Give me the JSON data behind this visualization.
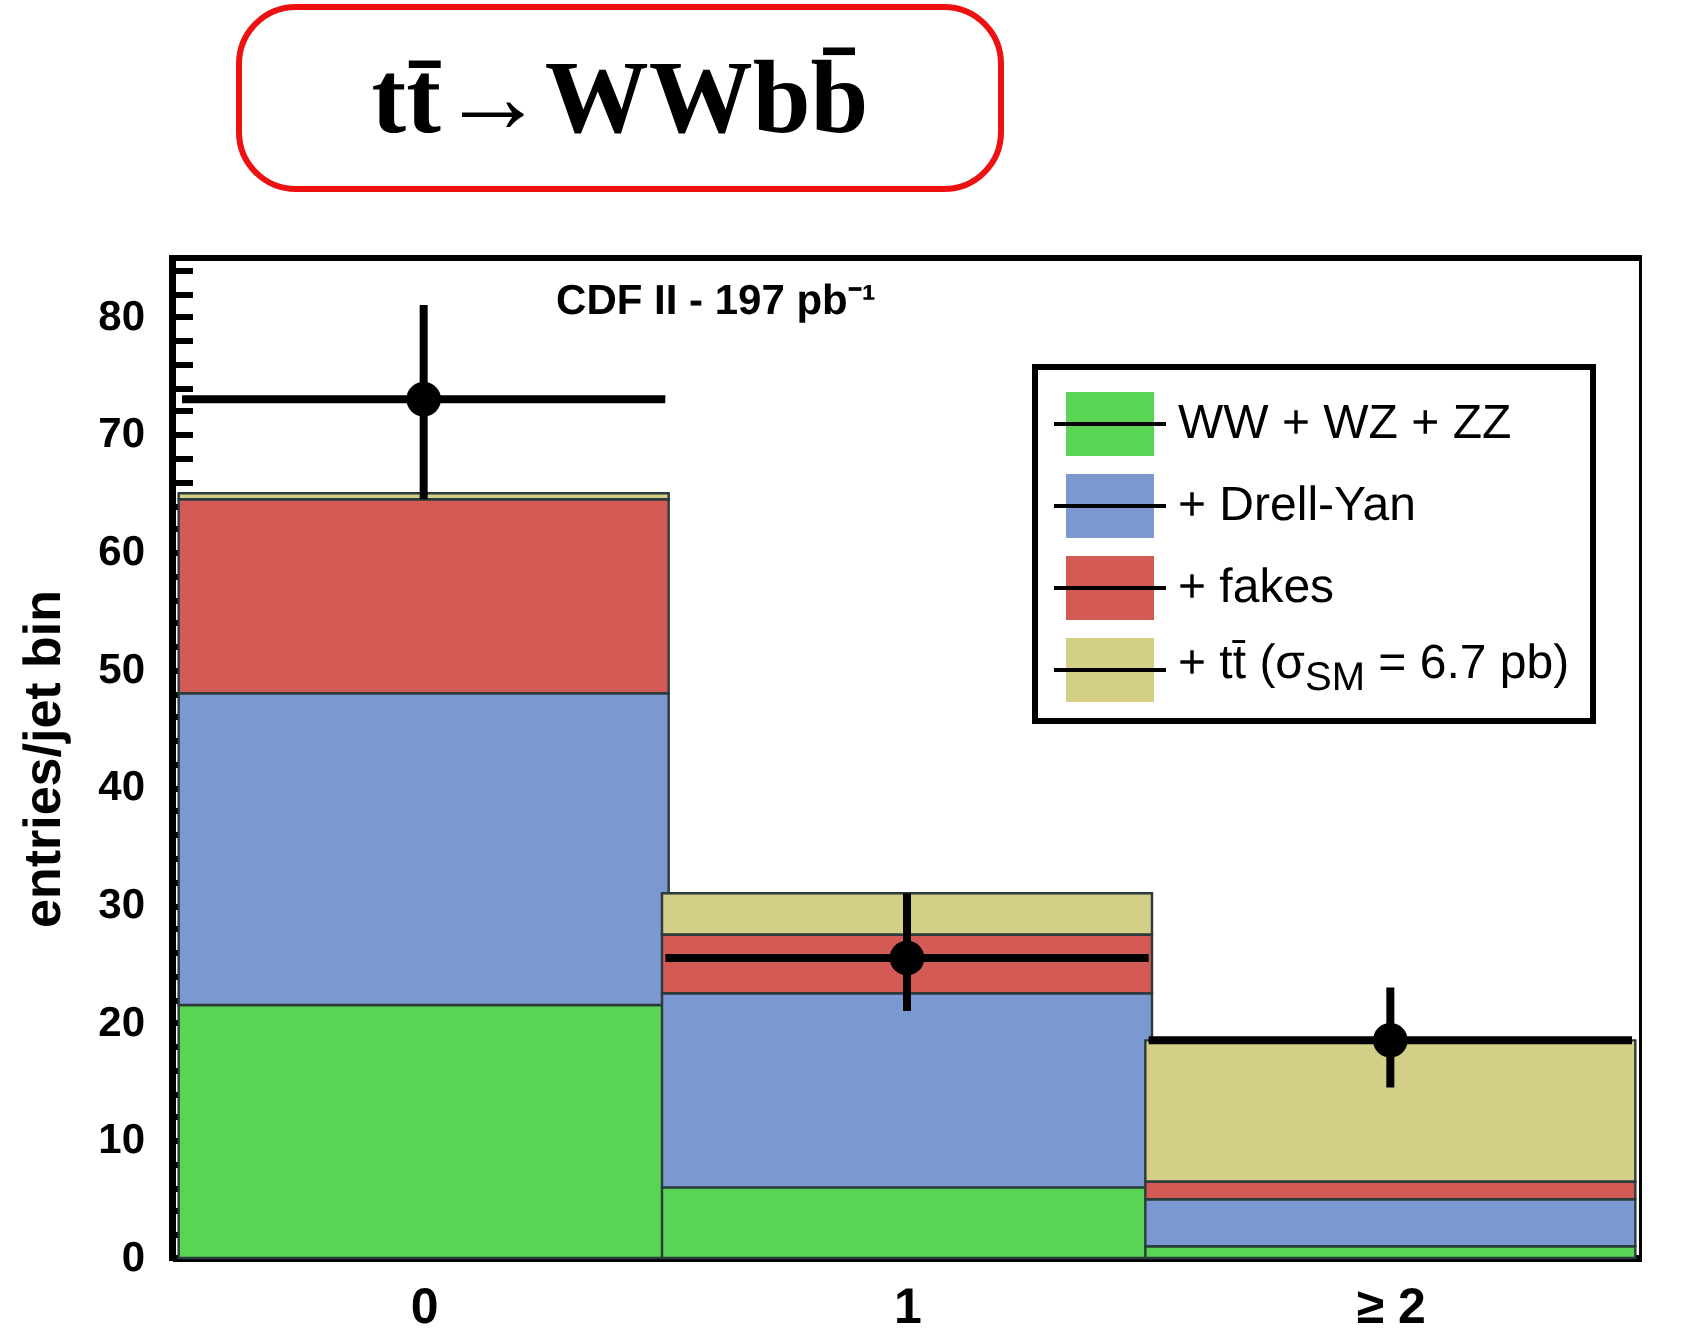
{
  "chart_data": {
    "type": "bar",
    "title": "tt̄→WWbb̄",
    "ylabel": "entries/jet bin",
    "annotations": [
      "CDF II - 197 pb⁻¹"
    ],
    "x": [
      0,
      1,
      2
    ],
    "xlim": [
      -0.5,
      2.5
    ],
    "xticks": [
      0,
      1,
      {
        "value": 2,
        "label": "≥ 2"
      }
    ],
    "stacked": true,
    "series": [
      {
        "name": "WW + WZ + ZZ",
        "color": "#5ad454",
        "values": [
          21.5,
          6,
          1
        ]
      },
      {
        "name": "+ Drell-Yan",
        "color": "#7b98d0",
        "values": [
          26.5,
          16.5,
          4
        ]
      },
      {
        "name": "+ fakes",
        "color": "#d45a55",
        "values": [
          16.5,
          5,
          1.5
        ]
      },
      {
        "name": "+ tt̄ (σ$_{SM}$ = 6.7 pb)",
        "color": "#d4cf87",
        "values": [
          0.5,
          3.5,
          12
        ]
      },
      {
        "type": "scatter",
        "color": "#000000",
        "values": [
          73,
          25.5,
          18.5
        ],
        "errors": [
          [
            64.5,
            81
          ],
          [
            21,
            31
          ],
          [
            14.5,
            23
          ]
        ],
        "xerrors": [
          0.5,
          0.5,
          0.5
        ]
      }
    ],
    "ylim": [
      0,
      85
    ],
    "yticks": [
      0,
      {
        "value": 2,
        "label": null
      },
      {
        "value": 4,
        "label": null
      },
      {
        "value": 6,
        "label": null
      },
      {
        "value": 8,
        "label": null
      },
      10,
      {
        "value": 12,
        "label": null
      },
      {
        "value": 14,
        "label": null
      },
      {
        "value": 16,
        "label": null
      },
      {
        "value": 18,
        "label": null
      },
      20,
      {
        "value": 22,
        "label": null
      },
      {
        "value": 24,
        "label": null
      },
      {
        "value": 26,
        "label": null
      },
      {
        "value": 28,
        "label": null
      },
      30,
      {
        "value": 32,
        "label": null
      },
      {
        "value": 34,
        "label": null
      },
      {
        "value": 36,
        "label": null
      },
      {
        "value": 38,
        "label": null
      },
      40,
      {
        "value": 42,
        "label": null
      },
      {
        "value": 44,
        "label": null
      },
      {
        "value": 46,
        "label": null
      },
      {
        "value": 48,
        "label": null
      },
      50,
      {
        "value": 52,
        "label": null
      },
      {
        "value": 54,
        "label": null
      },
      {
        "value": 56,
        "label": null
      },
      {
        "value": 58,
        "label": null
      },
      60,
      {
        "value": 62,
        "label": null
      },
      {
        "value": 64,
        "label": null
      },
      {
        "value": 66,
        "label": null
      },
      {
        "value": 68,
        "label": null
      },
      70,
      {
        "value": 72,
        "label": null
      },
      {
        "value": 74,
        "label": null
      },
      {
        "value": 76,
        "label": null
      },
      {
        "value": 78,
        "label": null
      },
      80,
      {
        "value": 82,
        "label": null
      },
      {
        "value": 84,
        "label": null
      }
    ],
    "grid": false,
    "legend": "top right",
    "marker": "circle"
  }
}
